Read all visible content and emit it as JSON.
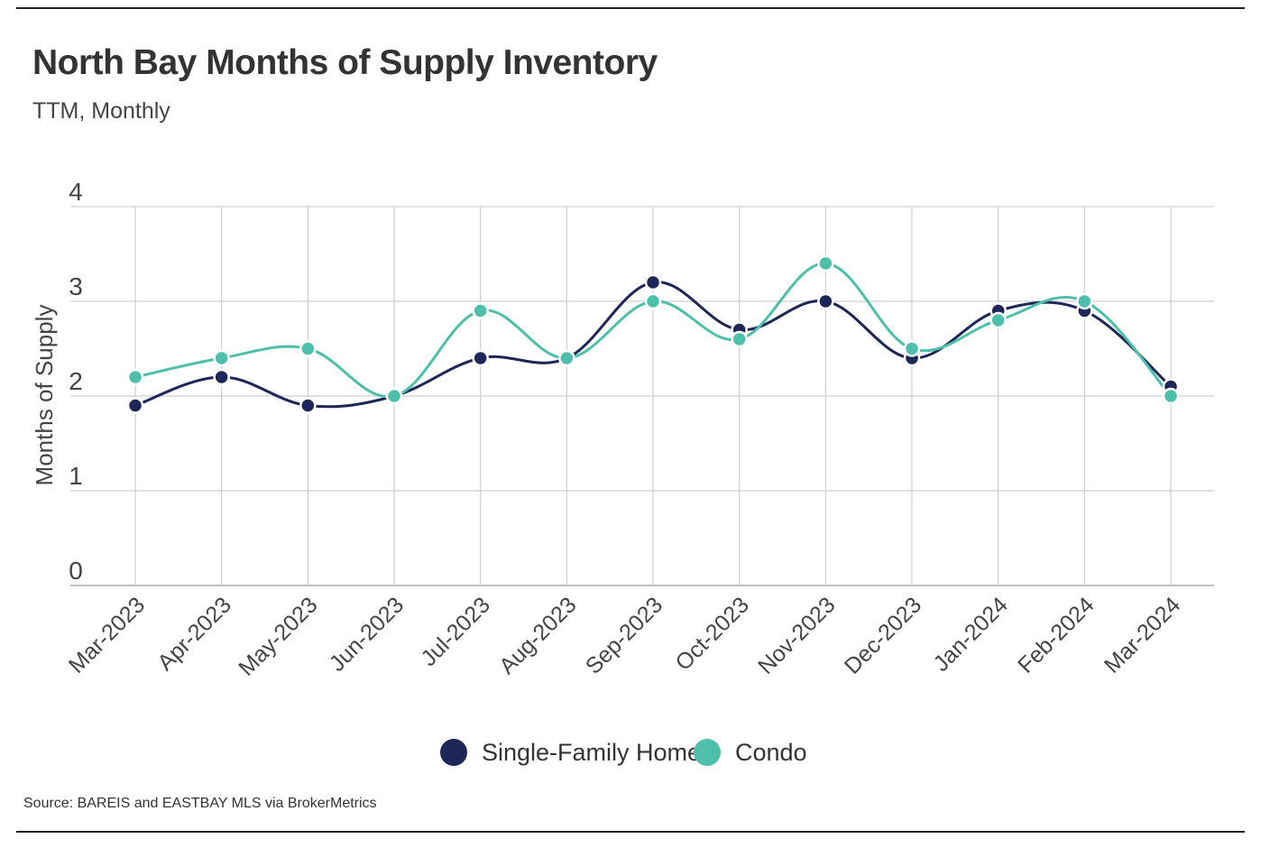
{
  "chart_data": {
    "type": "line",
    "title": "North Bay Months of Supply Inventory",
    "subtitle": "TTM, Monthly",
    "xlabel": "",
    "ylabel": "Months of Supply",
    "ylim": [
      0,
      4
    ],
    "yticks": [
      "0",
      "1",
      "2",
      "3",
      "4"
    ],
    "grid": true,
    "categories": [
      "Mar-2023",
      "Apr-2023",
      "May-2023",
      "Jun-2023",
      "Jul-2023",
      "Aug-2023",
      "Sep-2023",
      "Oct-2023",
      "Nov-2023",
      "Dec-2023",
      "Jan-2024",
      "Feb-2024",
      "Mar-2024"
    ],
    "series": [
      {
        "name": "Single-Family Home",
        "color": "#1c2657",
        "values": [
          1.9,
          2.2,
          1.9,
          2.0,
          2.4,
          2.4,
          3.2,
          2.7,
          3.0,
          2.4,
          2.9,
          2.9,
          2.1
        ]
      },
      {
        "name": "Condo",
        "color": "#4dbfaa",
        "values": [
          2.2,
          2.4,
          2.5,
          2.0,
          2.9,
          2.4,
          3.0,
          2.6,
          3.4,
          2.5,
          2.8,
          3.0,
          2.0
        ]
      }
    ],
    "legend_position": "bottom-center"
  },
  "source": "Source:  BAREIS and EASTBAY MLS via BrokerMetrics"
}
